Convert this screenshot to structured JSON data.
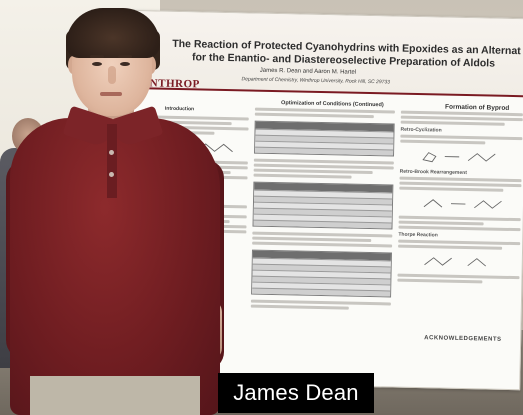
{
  "poster": {
    "title_line1": "The Reaction of Protected Cyanohydrins with Epoxides as an Alternat",
    "title_line2": "for the Enantio- and Diastereoselective Preparation of Aldols",
    "authors": "James R. Dean and Aaron M. Hartel",
    "department": "Department of Chemistry, Winthrop University, Rock Hill, SC 29733",
    "logo": "WINTHROP",
    "col_left_heading": "Introduction",
    "col_mid_heading": "Optimization of Conditions (Continued)",
    "col_right_heading": "Formation of Byprod",
    "sub_right_1": "Retro-Cyclization",
    "sub_right_2": "Retro-Brook Rearrangement",
    "sub_right_3": "Thorpe Reaction",
    "acknowledgements": "ACKNOWLEDGEMENTS"
  },
  "caption": {
    "name": "James Dean"
  }
}
